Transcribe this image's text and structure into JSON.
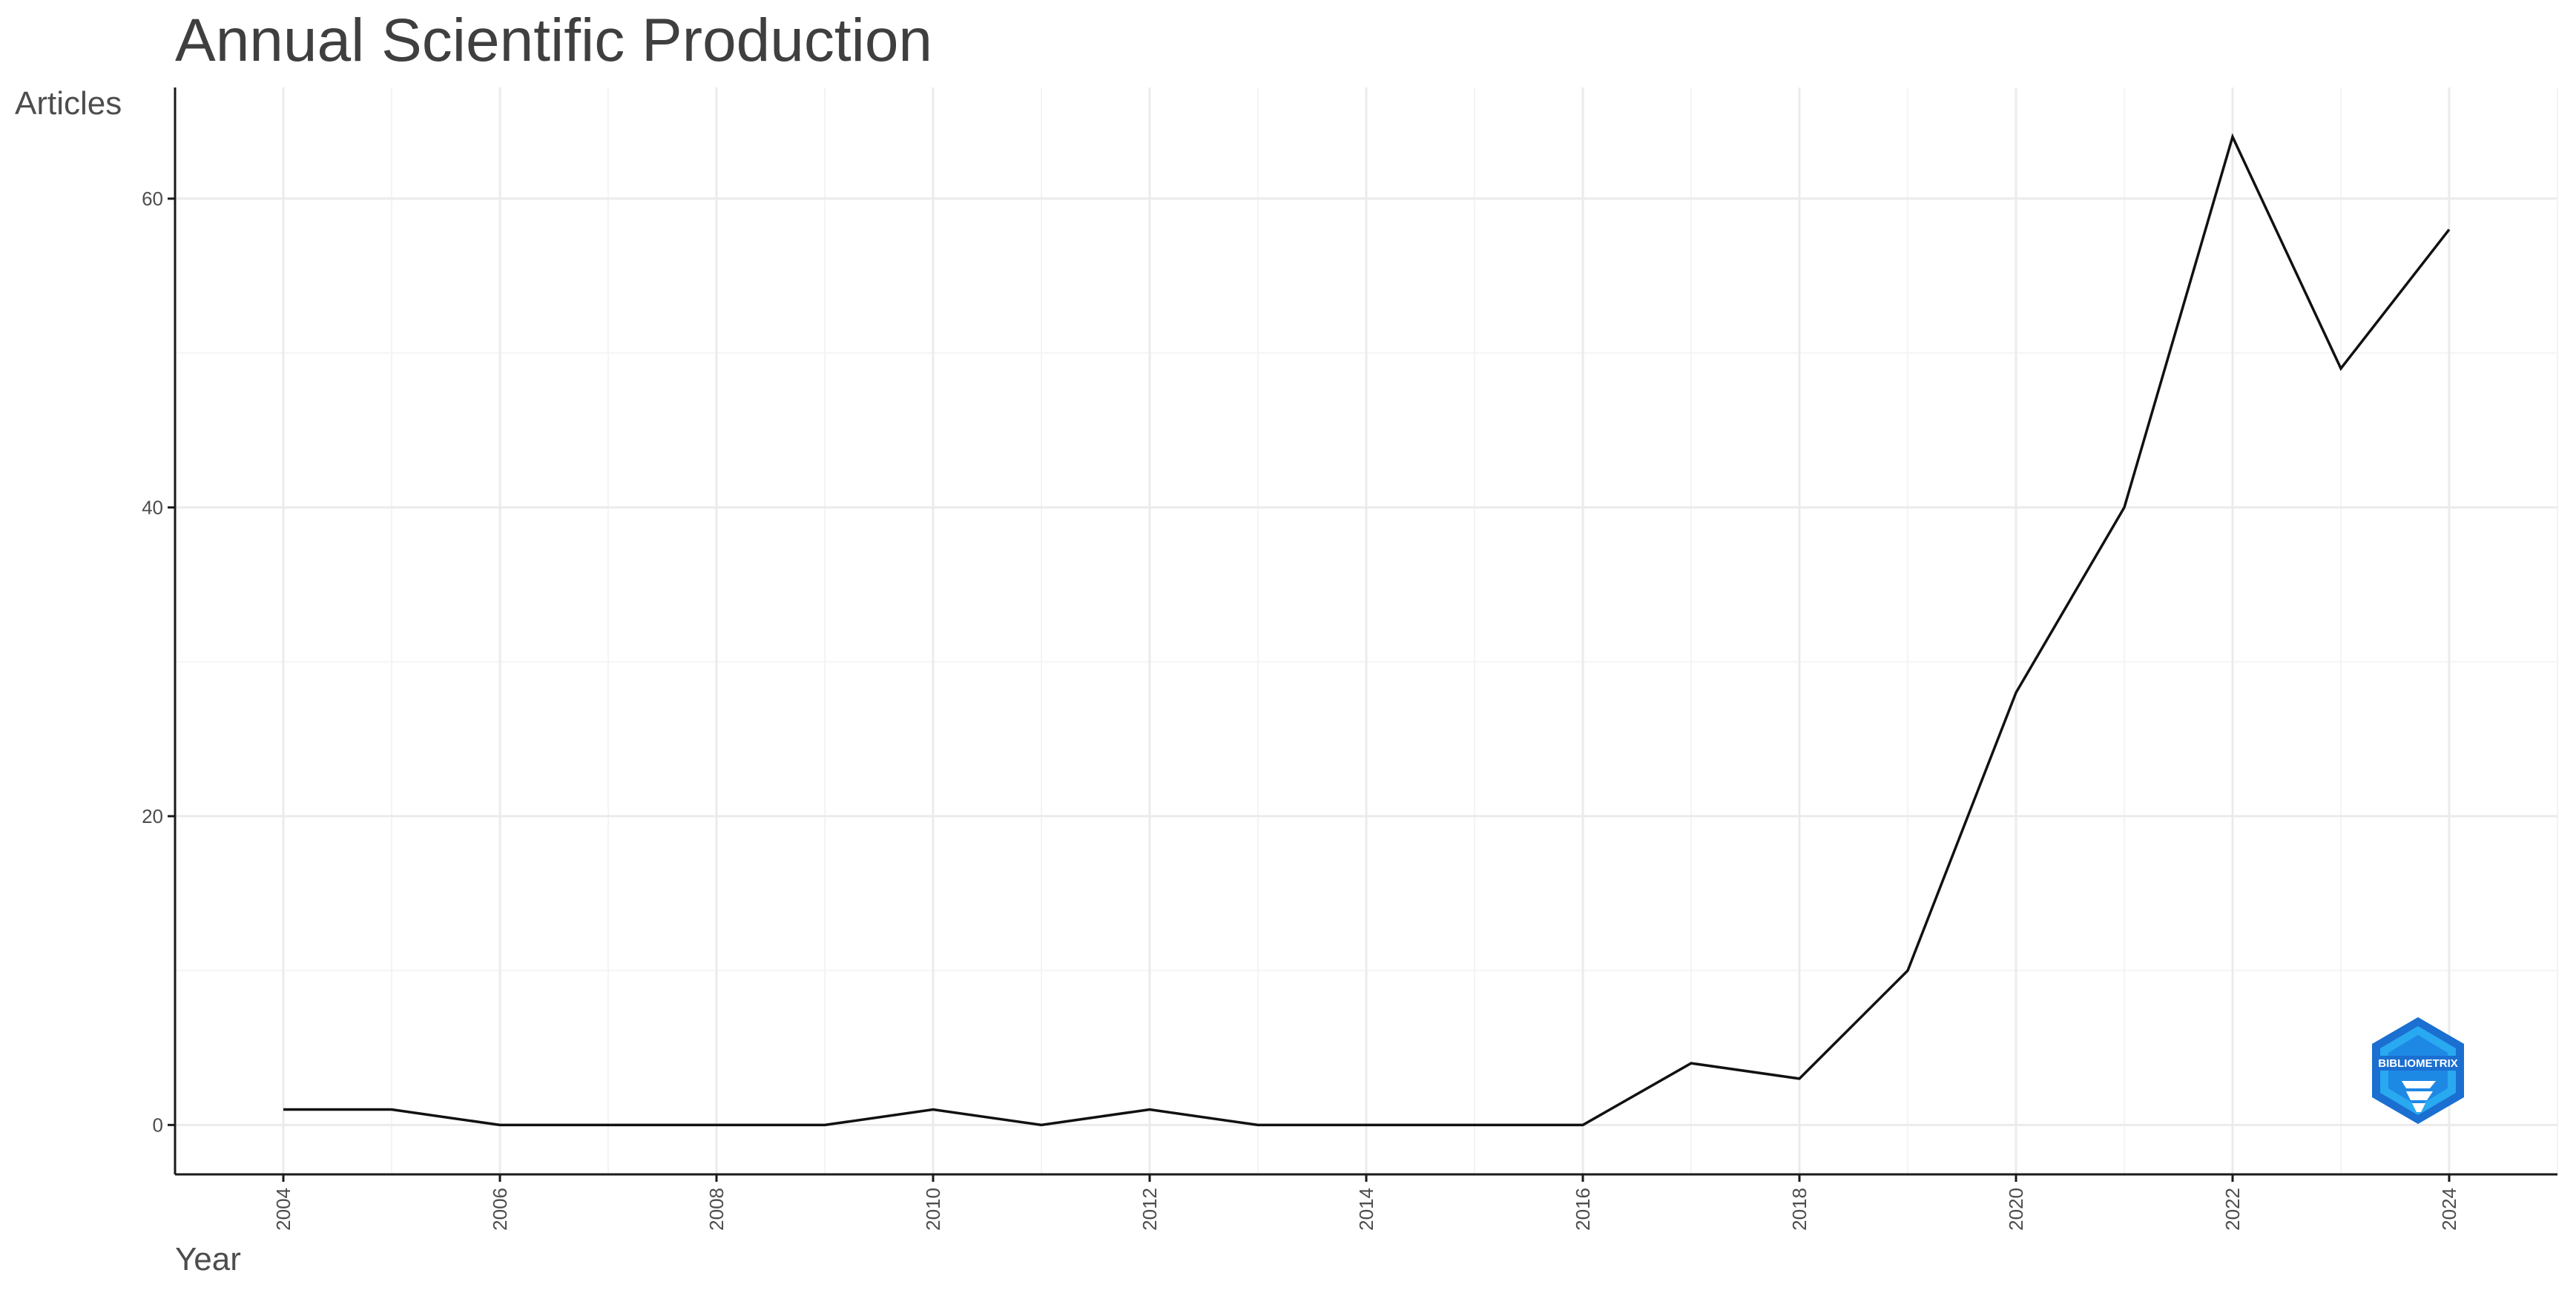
{
  "chart_data": {
    "type": "line",
    "title": "Annual Scientific Production",
    "xlabel": "Year",
    "ylabel": "Articles",
    "x": [
      2004,
      2005,
      2006,
      2007,
      2008,
      2009,
      2010,
      2011,
      2012,
      2013,
      2014,
      2015,
      2016,
      2017,
      2018,
      2019,
      2020,
      2021,
      2022,
      2023,
      2024
    ],
    "series": [
      {
        "values": [
          1,
          1,
          0,
          0,
          0,
          0,
          1,
          0,
          1,
          0,
          0,
          0,
          0,
          4,
          3,
          10,
          28,
          40,
          64,
          49,
          58
        ]
      }
    ],
    "xlim": [
      2003,
      2025
    ],
    "ylim": [
      -3.2,
      67.2
    ],
    "x_ticks": [
      "2004",
      "2006",
      "2008",
      "2010",
      "2012",
      "2014",
      "2016",
      "2018",
      "2020",
      "2022",
      "2024"
    ],
    "y_ticks": [
      "0",
      "20",
      "40",
      "60"
    ],
    "grid": true,
    "line_color": "#111111",
    "watermark": {
      "icon": "bibliometrix-logo",
      "text": "BIBLIOMETRIX",
      "colors": [
        "#1a6fd1",
        "#29b6f6"
      ]
    }
  }
}
